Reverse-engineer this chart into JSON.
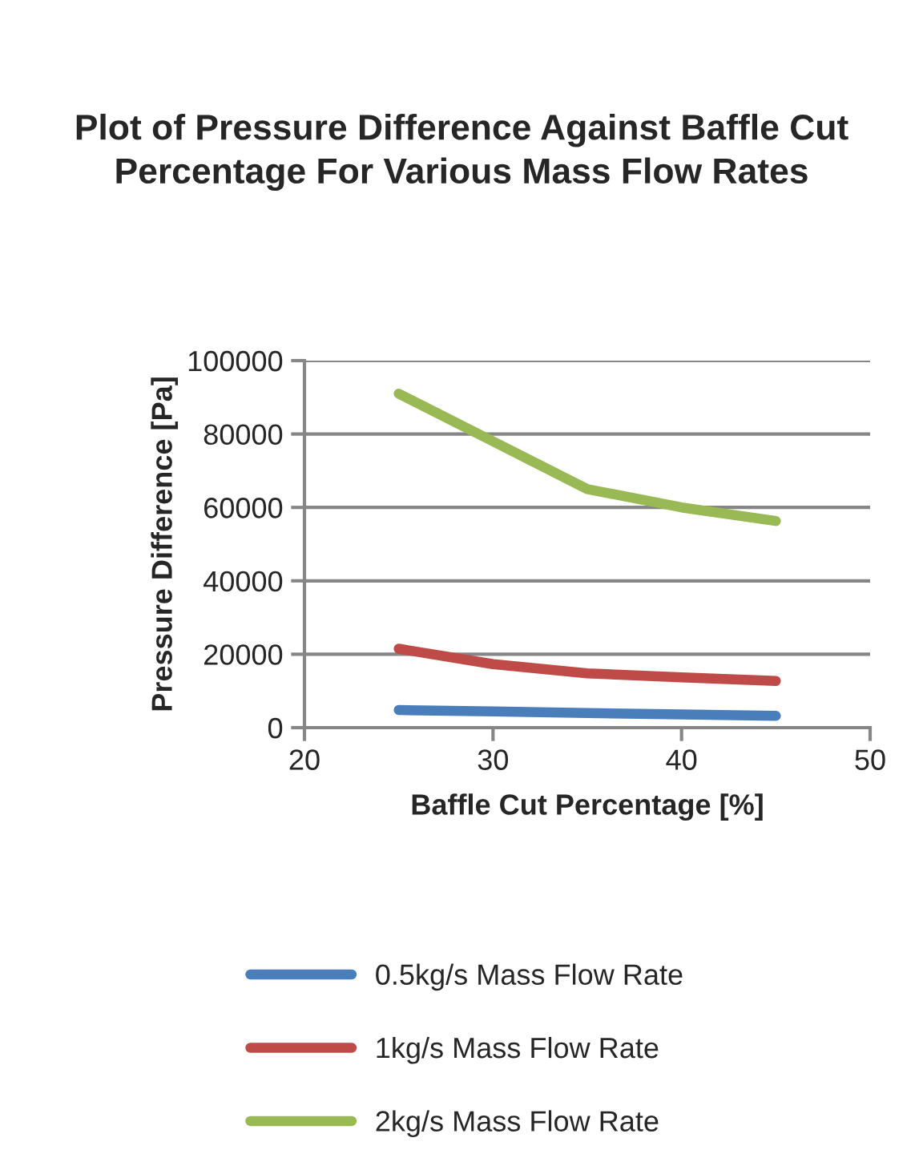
{
  "chart_data": {
    "type": "line",
    "title": "Plot of Pressure Difference Against Baffle Cut Percentage For Various Mass Flow Rates",
    "xlabel": "Baffle Cut Percentage [%]",
    "ylabel": "Pressure Difference [Pa]",
    "x": [
      25,
      30,
      35,
      40,
      45
    ],
    "series": [
      {
        "name": "0.5kg/s Mass Flow Rate",
        "color": "#4a7ebb",
        "values": [
          4800,
          4400,
          4000,
          3600,
          3200
        ]
      },
      {
        "name": "1kg/s Mass Flow Rate",
        "color": "#be4b48",
        "values": [
          21500,
          17300,
          14800,
          13700,
          12700
        ]
      },
      {
        "name": "2kg/s Mass Flow Rate",
        "color": "#98b954",
        "values": [
          91000,
          78000,
          65000,
          60000,
          56300
        ]
      }
    ],
    "xlim": [
      20,
      50
    ],
    "xticks": [
      20,
      30,
      40,
      50
    ],
    "ylim": [
      0,
      100000
    ],
    "yticks": [
      0,
      20000,
      40000,
      60000,
      80000,
      100000
    ],
    "grid": "y",
    "legend": "bottom",
    "marker": "none",
    "line_style": "solid"
  }
}
